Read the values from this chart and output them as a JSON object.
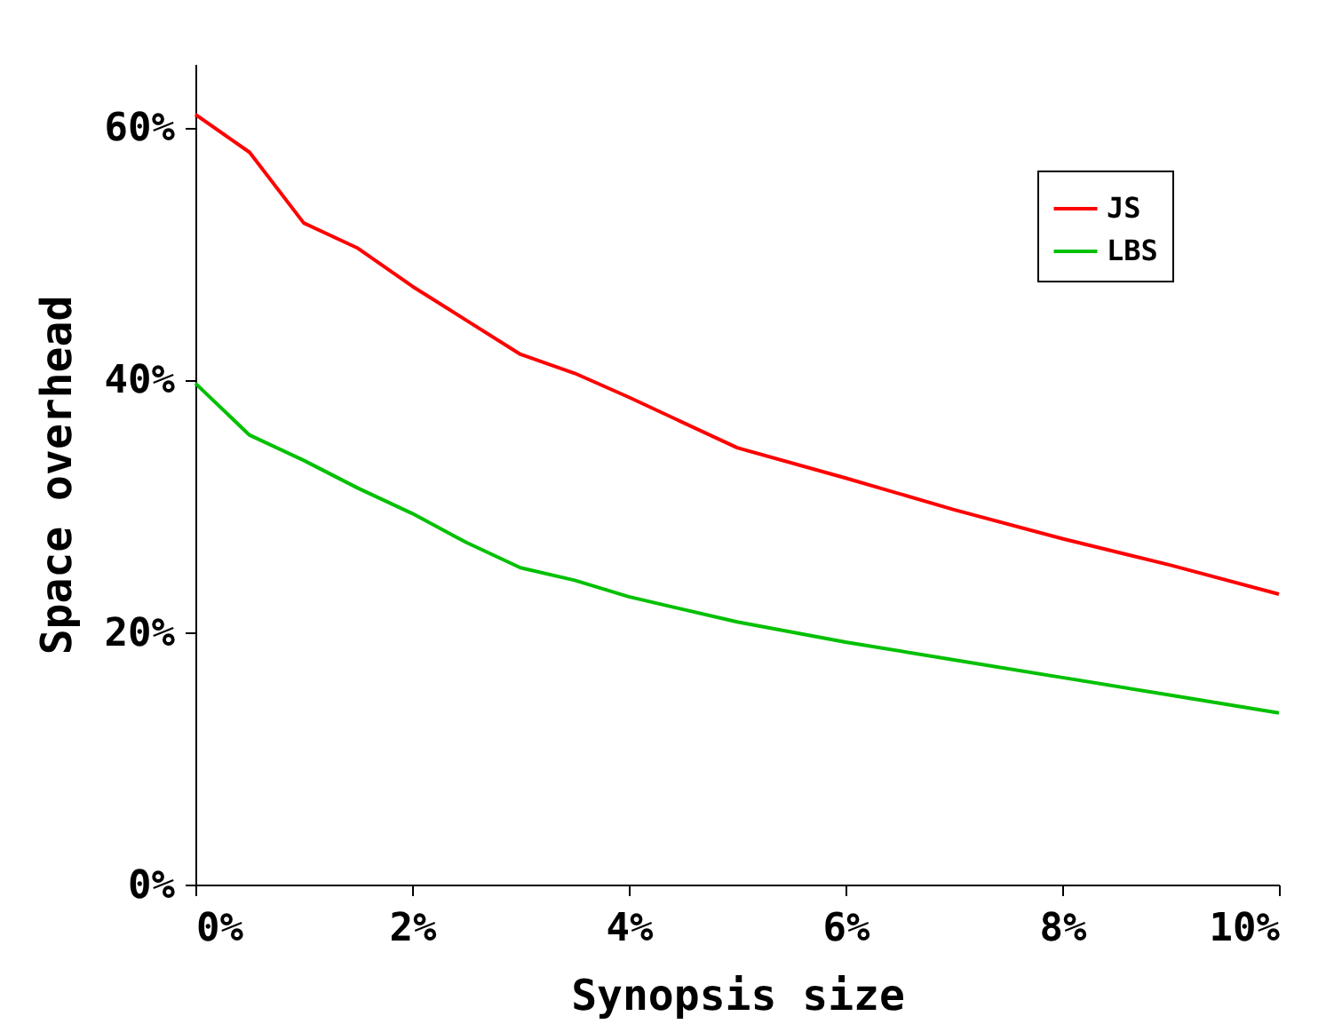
{
  "chart_data": {
    "type": "line",
    "xlabel": "Synopsis size",
    "ylabel": "Space overhead",
    "x": [
      0,
      0.5,
      1,
      1.5,
      2,
      2.5,
      3,
      3.5,
      4,
      5,
      6,
      7,
      8,
      9,
      10
    ],
    "series": [
      {
        "name": "JS",
        "color": "#ff0000",
        "values": [
          61,
          58,
          52.4,
          50.4,
          47.4,
          44.7,
          42,
          40.5,
          38.6,
          34.6,
          32.2,
          29.7,
          27.4,
          25.3,
          23
        ]
      },
      {
        "name": "LBS",
        "color": "#00c000",
        "values": [
          39.7,
          35.6,
          33.6,
          31.4,
          29.4,
          27.1,
          25.1,
          24.1,
          22.8,
          20.8,
          19.2,
          17.8,
          16.4,
          15,
          13.6
        ]
      }
    ],
    "xlim": [
      0,
      10
    ],
    "ylim": [
      0,
      65
    ],
    "xticks": [
      {
        "value": 0,
        "label": "0%"
      },
      {
        "value": 2,
        "label": "2%"
      },
      {
        "value": 4,
        "label": "4%"
      },
      {
        "value": 6,
        "label": "6%"
      },
      {
        "value": 8,
        "label": "8%"
      },
      {
        "value": 10,
        "label": "10%"
      }
    ],
    "yticks": [
      {
        "value": 0,
        "label": "0%"
      },
      {
        "value": 20,
        "label": "20%"
      },
      {
        "value": 40,
        "label": "40%"
      },
      {
        "value": 60,
        "label": "60%"
      }
    ],
    "grid": false,
    "legend": "top right",
    "marker": "none",
    "line_style": "solid"
  }
}
